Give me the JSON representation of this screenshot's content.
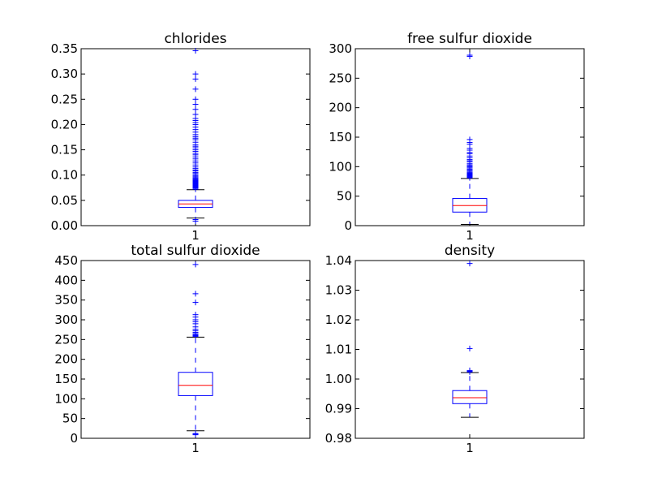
{
  "colors": {
    "box": "#0000ff",
    "median": "#ff0000",
    "whisker_cap": "#000000",
    "flier": "#0000ff"
  },
  "chart_data": [
    {
      "type": "box",
      "title": "chlorides",
      "categories": [
        "1"
      ],
      "ylim": [
        0,
        0.35
      ],
      "yticks": [
        "0.00",
        "0.05",
        "0.10",
        "0.15",
        "0.20",
        "0.25",
        "0.30",
        "0.35"
      ],
      "ytick_values": [
        0,
        0.05,
        0.1,
        0.15,
        0.2,
        0.25,
        0.3,
        0.35
      ],
      "box": {
        "whisker_low": 0.015,
        "q1": 0.036,
        "median": 0.043,
        "q3": 0.05,
        "whisker_high": 0.071
      },
      "fliers": [
        0.009,
        0.012,
        0.072,
        0.074,
        0.075,
        0.076,
        0.077,
        0.078,
        0.079,
        0.08,
        0.081,
        0.082,
        0.083,
        0.084,
        0.085,
        0.086,
        0.087,
        0.088,
        0.089,
        0.09,
        0.091,
        0.092,
        0.094,
        0.096,
        0.098,
        0.1,
        0.103,
        0.105,
        0.108,
        0.11,
        0.113,
        0.116,
        0.12,
        0.124,
        0.128,
        0.132,
        0.136,
        0.14,
        0.143,
        0.147,
        0.15,
        0.154,
        0.157,
        0.16,
        0.165,
        0.17,
        0.173,
        0.176,
        0.18,
        0.185,
        0.19,
        0.195,
        0.2,
        0.204,
        0.208,
        0.212,
        0.22,
        0.23,
        0.24,
        0.25,
        0.27,
        0.29,
        0.3,
        0.346
      ]
    },
    {
      "type": "box",
      "title": "free sulfur dioxide",
      "categories": [
        "1"
      ],
      "ylim": [
        0,
        300
      ],
      "yticks": [
        "0",
        "50",
        "100",
        "150",
        "200",
        "250",
        "300"
      ],
      "ytick_values": [
        0,
        50,
        100,
        150,
        200,
        250,
        300
      ],
      "box": {
        "whisker_low": 2,
        "q1": 23,
        "median": 34,
        "q3": 46,
        "whisker_high": 80
      },
      "fliers": [
        81,
        82,
        83,
        84,
        85,
        86,
        87,
        88,
        89,
        90,
        92,
        93,
        95,
        96,
        98,
        100,
        101,
        103,
        105,
        108,
        110,
        112,
        115,
        118,
        122,
        124,
        128,
        131,
        138,
        141,
        146,
        287,
        289
      ]
    },
    {
      "type": "box",
      "title": "total sulfur dioxide",
      "categories": [
        "1"
      ],
      "ylim": [
        0,
        450
      ],
      "yticks": [
        "0",
        "50",
        "100",
        "150",
        "200",
        "250",
        "300",
        "350",
        "400",
        "450"
      ],
      "ytick_values": [
        0,
        50,
        100,
        150,
        200,
        250,
        300,
        350,
        400,
        450
      ],
      "box": {
        "whisker_low": 19,
        "q1": 108,
        "median": 134,
        "q3": 167,
        "whisker_high": 256
      },
      "fliers": [
        9,
        10,
        11,
        12,
        258,
        260,
        262,
        265,
        268,
        272,
        276,
        282,
        290,
        295,
        300,
        307,
        313,
        344,
        366,
        440
      ]
    },
    {
      "type": "box",
      "title": "density",
      "categories": [
        "1"
      ],
      "ylim": [
        0.98,
        1.04
      ],
      "yticks": [
        "0.98",
        "0.99",
        "1.00",
        "1.01",
        "1.02",
        "1.03",
        "1.04"
      ],
      "ytick_values": [
        0.98,
        0.99,
        1.0,
        1.01,
        1.02,
        1.03,
        1.04
      ],
      "box": {
        "whisker_low": 0.9871,
        "q1": 0.9917,
        "median": 0.9937,
        "q3": 0.9961,
        "whisker_high": 1.0022
      },
      "fliers": [
        1.0024,
        1.0026,
        1.0029,
        1.0103,
        1.039
      ]
    }
  ]
}
